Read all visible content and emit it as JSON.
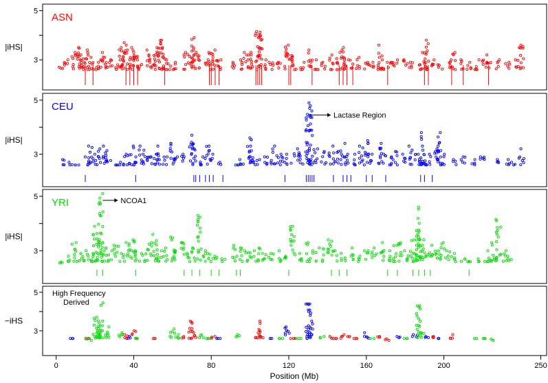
{
  "chart_data": {
    "type": "scatter",
    "xlabel": "Position (Mb)",
    "xlim": [
      -7,
      253
    ],
    "xticks": [
      0,
      40,
      80,
      120,
      160,
      200,
      250
    ],
    "panels": [
      {
        "label": "ASN",
        "ylabel": "|iHS|",
        "color": "#ff0000",
        "ylim": [
          2.0,
          5.1
        ],
        "yticks": [
          3,
          5
        ],
        "annotation": "",
        "clusters": [
          [
            2,
            2.7
          ],
          [
            5,
            3.0
          ],
          [
            9,
            3.3
          ],
          [
            12,
            3.5
          ],
          [
            13,
            3.0
          ],
          [
            14,
            3.2
          ],
          [
            16,
            3.4
          ],
          [
            18,
            3.1
          ],
          [
            21,
            2.9
          ],
          [
            23,
            3.3
          ],
          [
            26,
            3.1
          ],
          [
            28,
            3.0
          ],
          [
            32,
            3.0
          ],
          [
            33,
            3.5
          ],
          [
            35,
            3.7
          ],
          [
            37,
            3.4
          ],
          [
            39,
            3.5
          ],
          [
            41,
            3.3
          ],
          [
            43,
            3.0
          ],
          [
            48,
            3.4
          ],
          [
            50,
            3.2
          ],
          [
            52,
            3.5
          ],
          [
            54,
            3.8
          ],
          [
            56,
            3.5
          ],
          [
            58,
            3.0
          ],
          [
            61,
            2.9
          ],
          [
            67,
            3.3
          ],
          [
            70,
            3.9
          ],
          [
            71,
            3.4
          ],
          [
            74,
            3.2
          ],
          [
            78,
            3.0
          ],
          [
            80,
            3.3
          ],
          [
            82,
            3.4
          ],
          [
            84,
            3.0
          ],
          [
            92,
            2.9
          ],
          [
            95,
            3.0
          ],
          [
            98,
            3.3
          ],
          [
            101,
            3.3
          ],
          [
            104,
            4.15
          ],
          [
            105,
            4.0
          ],
          [
            108,
            3.0
          ],
          [
            111,
            2.9
          ],
          [
            115,
            2.9
          ],
          [
            119,
            3.6
          ],
          [
            121,
            3.2
          ],
          [
            123,
            3.0
          ],
          [
            127,
            2.9
          ],
          [
            131,
            3.4
          ],
          [
            134,
            3.0
          ],
          [
            138,
            2.9
          ],
          [
            142,
            3.2
          ],
          [
            146,
            3.3
          ],
          [
            148,
            3.5
          ],
          [
            149,
            3.1
          ],
          [
            152,
            3.0
          ],
          [
            156,
            3.1
          ],
          [
            160,
            2.9
          ],
          [
            163,
            2.9
          ],
          [
            167,
            3.6
          ],
          [
            168,
            3.0
          ],
          [
            172,
            2.9
          ],
          [
            175,
            3.0
          ],
          [
            180,
            3.0
          ],
          [
            183,
            2.9
          ],
          [
            187,
            2.8
          ],
          [
            190,
            3.3
          ],
          [
            191,
            3.8
          ],
          [
            194,
            3.0
          ],
          [
            198,
            2.8
          ],
          [
            203,
            3.0
          ],
          [
            205,
            3.3
          ],
          [
            209,
            3.0
          ],
          [
            213,
            2.9
          ],
          [
            217,
            3.0
          ],
          [
            221,
            3.2
          ],
          [
            223,
            2.9
          ],
          [
            228,
            3.0
          ],
          [
            233,
            2.9
          ],
          [
            238,
            3.0
          ],
          [
            240,
            3.6
          ]
        ],
        "bars": [
          15,
          19,
          36,
          38,
          40,
          42,
          56,
          79,
          80,
          82,
          84,
          103,
          104,
          105,
          106,
          120,
          121,
          132,
          146,
          148,
          150,
          153,
          171,
          190,
          192,
          204,
          210,
          223
        ]
      },
      {
        "label": "CEU",
        "ylabel": "|iHS|",
        "color": "#0000ff",
        "ylim": [
          2.0,
          5.1
        ],
        "yticks": [
          3,
          5
        ],
        "annotation": "Lactase Region",
        "clusters": [
          [
            4,
            2.8
          ],
          [
            7,
            2.7
          ],
          [
            11,
            2.6
          ],
          [
            16,
            2.9
          ],
          [
            18,
            3.3
          ],
          [
            20,
            3.0
          ],
          [
            23,
            3.2
          ],
          [
            25,
            3.3
          ],
          [
            27,
            2.8
          ],
          [
            31,
            2.6
          ],
          [
            34,
            2.7
          ],
          [
            36,
            3.0
          ],
          [
            39,
            3.3
          ],
          [
            41,
            2.9
          ],
          [
            44,
            3.3
          ],
          [
            46,
            3.0
          ],
          [
            48,
            2.9
          ],
          [
            51,
            3.0
          ],
          [
            53,
            3.3
          ],
          [
            56,
            2.9
          ],
          [
            60,
            3.4
          ],
          [
            62,
            2.9
          ],
          [
            65,
            3.0
          ],
          [
            70,
            3.7
          ],
          [
            71,
            3.2
          ],
          [
            75,
            2.9
          ],
          [
            78,
            3.3
          ],
          [
            80,
            3.0
          ],
          [
            84,
            2.7
          ],
          [
            93,
            2.6
          ],
          [
            96,
            2.8
          ],
          [
            100,
            3.3
          ],
          [
            101,
            3.6
          ],
          [
            104,
            2.8
          ],
          [
            108,
            2.9
          ],
          [
            112,
            3.3
          ],
          [
            115,
            3.0
          ],
          [
            117,
            2.9
          ],
          [
            120,
            3.0
          ],
          [
            124,
            3.2
          ],
          [
            126,
            3.0
          ],
          [
            130,
            4.9
          ],
          [
            131,
            4.6
          ],
          [
            134,
            3.2
          ],
          [
            138,
            3.1
          ],
          [
            142,
            3.3
          ],
          [
            145,
            3.1
          ],
          [
            148,
            3.4
          ],
          [
            150,
            3.0
          ],
          [
            154,
            3.0
          ],
          [
            157,
            3.3
          ],
          [
            160,
            3.5
          ],
          [
            162,
            3.0
          ],
          [
            167,
            3.4
          ],
          [
            169,
            3.0
          ],
          [
            172,
            2.9
          ],
          [
            175,
            3.1
          ],
          [
            180,
            3.0
          ],
          [
            183,
            3.3
          ],
          [
            186,
            3.0
          ],
          [
            188,
            3.8
          ],
          [
            190,
            3.3
          ],
          [
            192,
            3.0
          ],
          [
            196,
            3.3
          ],
          [
            198,
            3.8
          ],
          [
            200,
            3.0
          ],
          [
            206,
            2.8
          ],
          [
            210,
            2.9
          ],
          [
            215,
            2.8
          ],
          [
            220,
            2.9
          ],
          [
            227,
            2.8
          ],
          [
            233,
            2.8
          ],
          [
            236,
            2.7
          ],
          [
            240,
            3.2
          ]
        ],
        "bars": [
          15,
          41,
          71,
          72,
          74,
          77,
          79,
          81,
          86,
          118,
          129,
          130,
          131,
          132,
          133,
          143,
          148,
          150,
          152,
          160,
          163,
          170,
          188,
          190,
          194
        ]
      },
      {
        "label": "YRI",
        "ylabel": "|iHS|",
        "color": "#00dd00",
        "ylim": [
          2.0,
          5.1
        ],
        "yticks": [
          3,
          5
        ],
        "annotation": "NCOA1",
        "clusters": [
          [
            2,
            2.55
          ],
          [
            6,
            2.8
          ],
          [
            9,
            3.3
          ],
          [
            12,
            2.9
          ],
          [
            15,
            3.0
          ],
          [
            17,
            2.8
          ],
          [
            20,
            3.9
          ],
          [
            21,
            3.4
          ],
          [
            23,
            5.1
          ],
          [
            25,
            3.3
          ],
          [
            28,
            3.0
          ],
          [
            31,
            3.2
          ],
          [
            34,
            2.9
          ],
          [
            37,
            3.3
          ],
          [
            40,
            3.4
          ],
          [
            42,
            3.0
          ],
          [
            45,
            2.9
          ],
          [
            48,
            3.3
          ],
          [
            51,
            3.6
          ],
          [
            53,
            3.0
          ],
          [
            56,
            3.1
          ],
          [
            60,
            3.5
          ],
          [
            62,
            3.0
          ],
          [
            65,
            3.3
          ],
          [
            68,
            2.9
          ],
          [
            71,
            3.1
          ],
          [
            74,
            4.3
          ],
          [
            76,
            3.0
          ],
          [
            79,
            2.9
          ],
          [
            82,
            2.8
          ],
          [
            86,
            2.7
          ],
          [
            92,
            3.2
          ],
          [
            95,
            3.1
          ],
          [
            98,
            3.0
          ],
          [
            101,
            3.0
          ],
          [
            104,
            3.1
          ],
          [
            107,
            2.9
          ],
          [
            111,
            2.9
          ],
          [
            115,
            3.0
          ],
          [
            118,
            2.8
          ],
          [
            122,
            3.9
          ],
          [
            126,
            2.9
          ],
          [
            130,
            3.3
          ],
          [
            133,
            3.0
          ],
          [
            137,
            3.1
          ],
          [
            141,
            3.4
          ],
          [
            144,
            3.0
          ],
          [
            148,
            2.9
          ],
          [
            152,
            3.1
          ],
          [
            156,
            2.8
          ],
          [
            160,
            3.0
          ],
          [
            164,
            3.1
          ],
          [
            168,
            3.3
          ],
          [
            172,
            3.0
          ],
          [
            175,
            3.2
          ],
          [
            178,
            3.3
          ],
          [
            181,
            3.0
          ],
          [
            184,
            3.4
          ],
          [
            186,
            3.7
          ],
          [
            187,
            4.6
          ],
          [
            190,
            3.4
          ],
          [
            193,
            3.2
          ],
          [
            196,
            3.0
          ],
          [
            199,
            3.3
          ],
          [
            202,
            3.0
          ],
          [
            205,
            2.9
          ],
          [
            210,
            2.7
          ],
          [
            213,
            2.6
          ],
          [
            217,
            2.7
          ],
          [
            222,
            3.0
          ],
          [
            225,
            3.3
          ],
          [
            228,
            4.15
          ],
          [
            231,
            3.0
          ],
          [
            234,
            2.8
          ]
        ],
        "bars": [
          21,
          24,
          41,
          66,
          70,
          74,
          80,
          84,
          93,
          95,
          120,
          142,
          146,
          150,
          171,
          176,
          184,
          187,
          190,
          193,
          213
        ]
      },
      {
        "label": "",
        "ylabel": "−iHS",
        "color": "",
        "ylim": [
          2.0,
          5.1
        ],
        "yticks": [
          3,
          5
        ],
        "annotation": "High Frequency\nDerived",
        "legend": [],
        "clusters": [
          [
            8,
            2.6,
            "#0000ff"
          ],
          [
            16,
            2.6,
            "#ff0000"
          ],
          [
            17,
            2.5,
            "#00dd00"
          ],
          [
            20,
            3.7,
            "#00dd00"
          ],
          [
            22,
            3.0,
            "#00dd00"
          ],
          [
            23,
            4.45,
            "#00dd00"
          ],
          [
            26,
            3.2,
            "#00dd00"
          ],
          [
            33,
            2.9,
            "#00dd00"
          ],
          [
            36,
            2.8,
            "#ff0000"
          ],
          [
            38,
            2.7,
            "#0000ff"
          ],
          [
            40,
            3.0,
            "#ff0000"
          ],
          [
            42,
            2.6,
            "#00dd00"
          ],
          [
            50,
            2.6,
            "#ff0000"
          ],
          [
            60,
            3.1,
            "#00dd00"
          ],
          [
            62,
            2.8,
            "#00dd00"
          ],
          [
            66,
            2.7,
            "#ff0000"
          ],
          [
            69,
            3.5,
            "#ff0000"
          ],
          [
            71,
            2.9,
            "#ff0000"
          ],
          [
            75,
            2.8,
            "#00dd00"
          ],
          [
            78,
            2.6,
            "#00dd00"
          ],
          [
            81,
            2.7,
            "#ff0000"
          ],
          [
            84,
            2.6,
            "#0000ff"
          ],
          [
            94,
            2.8,
            "#00dd00"
          ],
          [
            104,
            3.5,
            "#ff0000"
          ],
          [
            106,
            3.0,
            "#ff0000"
          ],
          [
            110,
            2.6,
            "#0000ff"
          ],
          [
            116,
            2.6,
            "#00dd00"
          ],
          [
            119,
            3.2,
            "#0000ff"
          ],
          [
            122,
            2.6,
            "#ff0000"
          ],
          [
            125,
            2.6,
            "#00dd00"
          ],
          [
            130,
            4.4,
            "#0000ff"
          ],
          [
            131,
            3.8,
            "#0000ff"
          ],
          [
            137,
            2.7,
            "#00dd00"
          ],
          [
            141,
            2.7,
            "#ff0000"
          ],
          [
            144,
            2.6,
            "#ff0000"
          ],
          [
            148,
            2.8,
            "#ff0000"
          ],
          [
            151,
            2.7,
            "#ff0000"
          ],
          [
            154,
            2.6,
            "#ff0000"
          ],
          [
            160,
            2.9,
            "#0000ff"
          ],
          [
            163,
            2.6,
            "#00dd00"
          ],
          [
            167,
            2.7,
            "#ff0000"
          ],
          [
            171,
            2.5,
            "#ff0000"
          ],
          [
            177,
            2.7,
            "#0000ff"
          ],
          [
            180,
            2.6,
            "#00dd00"
          ],
          [
            185,
            2.8,
            "#0000ff"
          ],
          [
            187,
            4.3,
            "#00dd00"
          ],
          [
            189,
            2.9,
            "#00dd00"
          ],
          [
            191,
            2.7,
            "#0000ff"
          ],
          [
            194,
            2.7,
            "#ff0000"
          ],
          [
            197,
            2.6,
            "#0000ff"
          ],
          [
            204,
            2.8,
            "#ff0000"
          ],
          [
            216,
            2.6,
            "#00dd00"
          ],
          [
            220,
            2.6,
            "#00dd00"
          ],
          [
            225,
            2.5,
            "#00dd00"
          ]
        ]
      }
    ]
  }
}
